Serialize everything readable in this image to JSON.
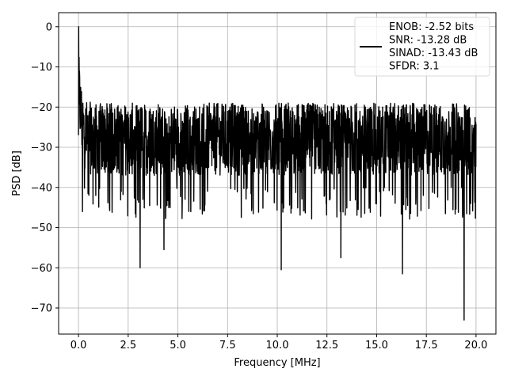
{
  "chart_data": {
    "type": "line",
    "title": "",
    "xlabel": "Frequency [MHz]",
    "ylabel": "PSD [dB]",
    "xlim": [
      -1.0,
      21.0
    ],
    "ylim": [
      -76.5,
      3.5
    ],
    "x_ticks": [
      0.0,
      2.5,
      5.0,
      7.5,
      10.0,
      12.5,
      15.0,
      17.5,
      20.0
    ],
    "x_tick_labels": [
      "0.0",
      "2.5",
      "5.0",
      "7.5",
      "10.0",
      "12.5",
      "15.0",
      "17.5",
      "20.0"
    ],
    "y_ticks": [
      0,
      -10,
      -20,
      -30,
      -40,
      -50,
      -60,
      -70
    ],
    "y_tick_labels": [
      "0",
      "−10",
      "−20",
      "−30",
      "−40",
      "−50",
      "−60",
      "−70"
    ],
    "grid": true,
    "legend_position": "top-right",
    "series": [
      {
        "name": "",
        "color": "#000000",
        "x_range": [
          0.0,
          20.0
        ],
        "peak": {
          "x": 0.0,
          "y": 0.0
        },
        "noise_floor_mean_db": -28,
        "noise_top_db": -17,
        "noise_bottom_db": -40,
        "notable_dips": [
          {
            "x": 3.1,
            "y": -60
          },
          {
            "x": 4.3,
            "y": -55.5
          },
          {
            "x": 10.2,
            "y": -60.5
          },
          {
            "x": 13.2,
            "y": -57.5
          },
          {
            "x": 16.3,
            "y": -61.5
          },
          {
            "x": 19.4,
            "y": -73
          }
        ]
      }
    ],
    "legend": {
      "lines": [
        "ENOB: -2.52 bits",
        "SNR: -13.28 dB",
        "SINAD: -13.43 dB",
        "SFDR: 3.1"
      ]
    }
  }
}
